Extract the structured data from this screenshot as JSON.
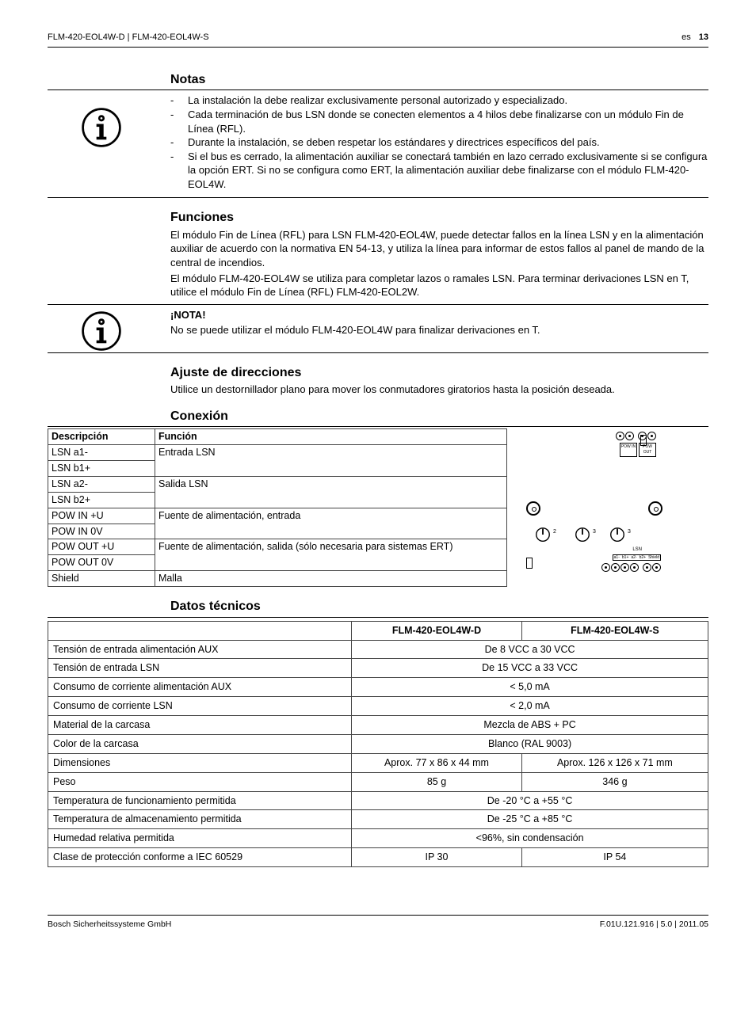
{
  "header": {
    "left": "FLM-420-EOL4W-D | FLM-420-EOL4W-S",
    "lang": "es",
    "page": "13"
  },
  "notas": {
    "title": "Notas",
    "items": [
      "La instalación la debe realizar exclusivamente personal autorizado y especializado.",
      "Cada terminación de bus LSN donde se conecten elementos a 4 hilos debe finalizarse con un módulo Fin de Línea (RFL).",
      "Durante la instalación, se deben respetar los estándares y directrices específicos del país.",
      "Si el bus es cerrado, la alimentación auxiliar se conectará también en lazo cerrado exclusivamente si se configura la opción ERT. Si no se configura como ERT, la alimentación auxiliar debe finalizarse con el módulo FLM-420-EOL4W."
    ]
  },
  "funciones": {
    "title": "Funciones",
    "p1": "El módulo Fin de Línea (RFL) para LSN FLM-420-EOL4W, puede detectar fallos en la línea LSN y en la alimentación auxiliar de acuerdo con la normativa EN 54-13, y utiliza la línea para informar de estos fallos al panel de mando de la central de incendios.",
    "p2": "El módulo FLM-420-EOL4W se utiliza para completar lazos o ramales LSN. Para terminar derivaciones LSN en T, utilice el módulo Fin de Línea (RFL) FLM-420-EOL2W."
  },
  "nota2": {
    "label": "¡NOTA!",
    "text": "No se puede utilizar el módulo FLM-420-EOL4W para finalizar derivaciones en T."
  },
  "ajuste": {
    "title": "Ajuste de direcciones",
    "text": "Utilice un destornillador plano para mover los conmutadores giratorios hasta la posición deseada."
  },
  "conexion": {
    "title": "Conexión",
    "h_desc": "Descripción",
    "h_func": "Función",
    "rows": [
      {
        "desc": "LSN a1-",
        "func": "Entrada LSN"
      },
      {
        "desc": "LSN b1+",
        "func": ""
      },
      {
        "desc": "LSN a2-",
        "func": "Salida LSN"
      },
      {
        "desc": "LSN b2+",
        "func": ""
      },
      {
        "desc": "POW IN +U",
        "func": "Fuente de alimentación, entrada"
      },
      {
        "desc": "POW IN 0V",
        "func": ""
      },
      {
        "desc": "POW OUT +U",
        "func": "Fuente de alimentación, salida (sólo necesaria para sistemas ERT)"
      },
      {
        "desc": "POW OUT 0V",
        "func": ""
      },
      {
        "desc": "Shield",
        "func": "Malla"
      }
    ],
    "diagram": {
      "top_labels": [
        "+U  0V",
        "+U  0V"
      ],
      "top_groups": [
        "POW IN",
        "POW OUT"
      ],
      "bottom_labels": [
        "a1-",
        "b1+",
        "a2-",
        "b2+",
        "Shield"
      ],
      "lsn_label": "LSN",
      "rotary_numbers": [
        "2",
        "3",
        "3"
      ]
    }
  },
  "datos": {
    "title": "Datos técnicos",
    "h1": "FLM-420-EOL4W-D",
    "h2": "FLM-420-EOL4W-S",
    "rows": [
      {
        "label": "Tensión de entrada alimentación AUX",
        "v1": "De 8 VCC a 30 VCC",
        "span": true
      },
      {
        "label": "Tensión de entrada LSN",
        "v1": "De 15 VCC a 33 VCC",
        "span": true
      },
      {
        "label": "Consumo de corriente alimentación AUX",
        "v1": "< 5,0 mA",
        "span": true
      },
      {
        "label": "Consumo de corriente LSN",
        "v1": "< 2,0 mA",
        "span": true
      },
      {
        "label": "Material de la carcasa",
        "v1": "Mezcla de ABS + PC",
        "span": true
      },
      {
        "label": "Color de la carcasa",
        "v1": "Blanco (RAL 9003)",
        "span": true
      },
      {
        "label": "Dimensiones",
        "v1": "Aprox. 77 x 86 x 44 mm",
        "v2": "Aprox. 126 x 126 x 71 mm",
        "span": false
      },
      {
        "label": "Peso",
        "v1": "85 g",
        "v2": "346 g",
        "span": false
      },
      {
        "label": "Temperatura de funcionamiento permitida",
        "v1": "De -20 °C a +55 °C",
        "span": true
      },
      {
        "label": "Temperatura de almacenamiento permitida",
        "v1": "De -25 °C a +85 °C",
        "span": true
      },
      {
        "label": "Humedad relativa permitida",
        "v1": "<96%, sin condensación",
        "span": true
      },
      {
        "label": "Clase de protección conforme a IEC 60529",
        "v1": "IP 30",
        "v2": "IP 54",
        "span": false
      }
    ]
  },
  "footer": {
    "left": "Bosch Sicherheitssysteme GmbH",
    "right": "F.01U.121.916 | 5.0 | 2011.05"
  }
}
